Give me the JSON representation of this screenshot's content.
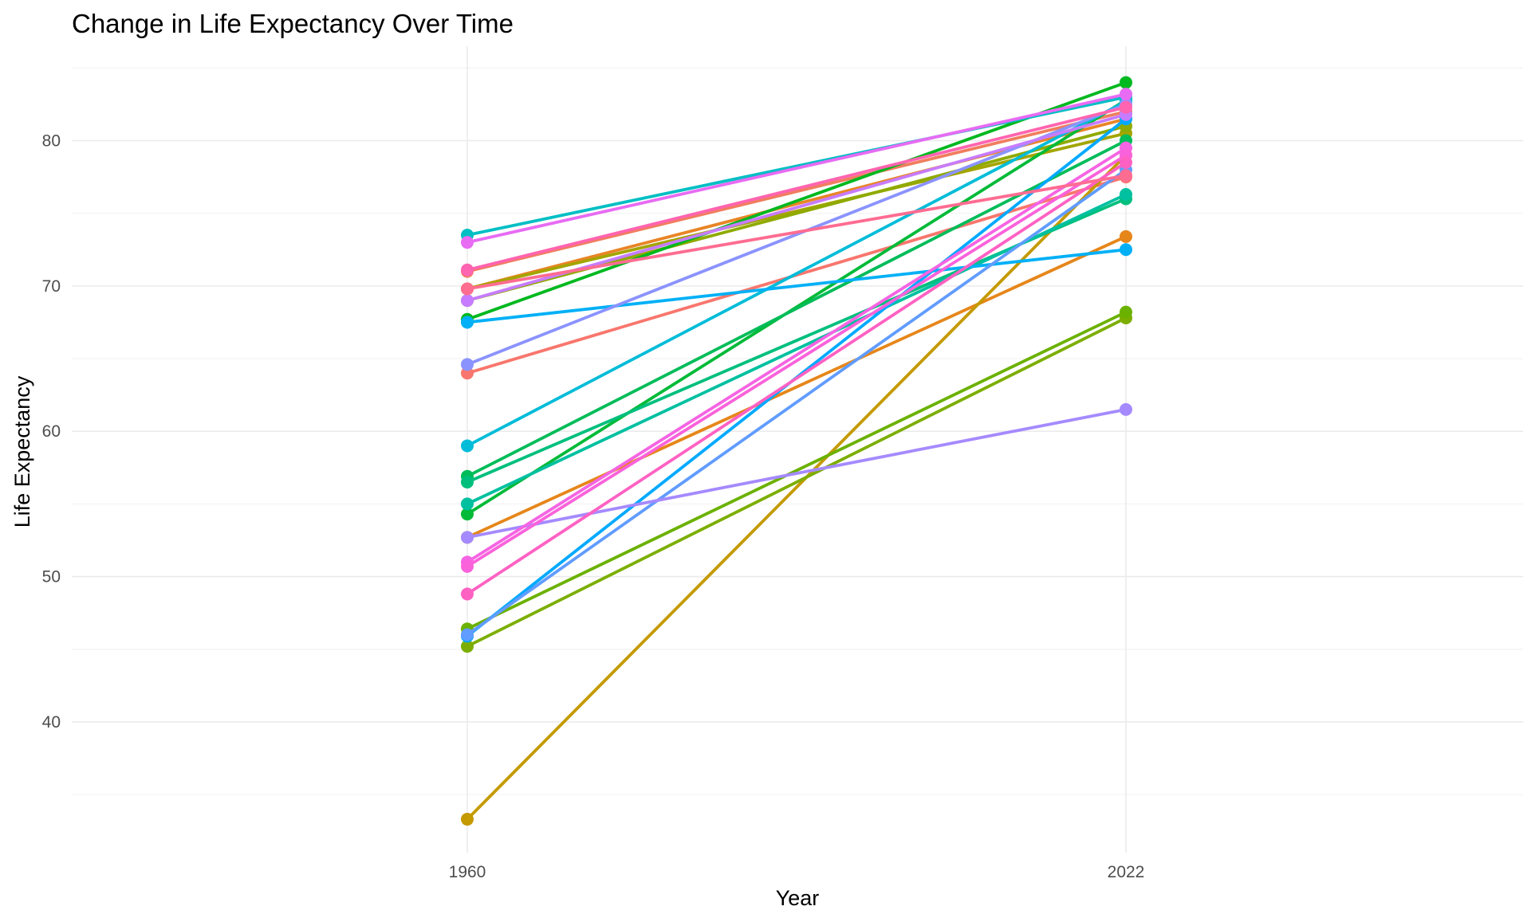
{
  "chart_data": {
    "type": "line",
    "title": "Change in Life Expectancy Over Time",
    "xlabel": "Year",
    "ylabel": "Life Expectancy",
    "x": [
      "1960",
      "2022"
    ],
    "ylim": [
      31,
      86.5
    ],
    "yticks": [
      40,
      50,
      60,
      70,
      80
    ],
    "grid": true,
    "legend": "none",
    "series": [
      {
        "color": "#F8766D",
        "values": [
          64.0,
          77.5
        ]
      },
      {
        "color": "#F07E5E",
        "values": [
          71.0,
          82.0
        ]
      },
      {
        "color": "#E88526",
        "values": [
          69.8,
          81.5
        ]
      },
      {
        "color": "#E6861A",
        "values": [
          52.7,
          73.4
        ]
      },
      {
        "color": "#C49A00",
        "values": [
          33.3,
          79.0
        ]
      },
      {
        "color": "#A3A500",
        "values": [
          69.8,
          80.5
        ]
      },
      {
        "color": "#8FAA00",
        "values": [
          69.0,
          81.0
        ]
      },
      {
        "color": "#7CAE00",
        "values": [
          45.2,
          67.8
        ]
      },
      {
        "color": "#6BB100",
        "values": [
          46.4,
          68.2
        ]
      },
      {
        "color": "#00B81F",
        "values": [
          67.7,
          84.0
        ]
      },
      {
        "color": "#00BA38",
        "values": [
          54.3,
          82.8
        ]
      },
      {
        "color": "#00BC59",
        "values": [
          56.9,
          80.0
        ]
      },
      {
        "color": "#00BF7D",
        "values": [
          56.5,
          76.0
        ]
      },
      {
        "color": "#00C0A0",
        "values": [
          55.0,
          76.3
        ]
      },
      {
        "color": "#00BFC4",
        "values": [
          73.5,
          83.0
        ]
      },
      {
        "color": "#00BCD8",
        "values": [
          59.0,
          82.7
        ]
      },
      {
        "color": "#00B0F6",
        "values": [
          67.5,
          72.5
        ]
      },
      {
        "color": "#00A9FF",
        "values": [
          45.9,
          81.5
        ]
      },
      {
        "color": "#619CFF",
        "values": [
          46.0,
          78.0
        ]
      },
      {
        "color": "#8B93FF",
        "values": [
          64.6,
          82.5
        ]
      },
      {
        "color": "#A58AFF",
        "values": [
          52.7,
          61.5
        ]
      },
      {
        "color": "#C77CFF",
        "values": [
          69.0,
          81.8
        ]
      },
      {
        "color": "#E76BF3",
        "values": [
          73.0,
          83.2
        ]
      },
      {
        "color": "#F564E3",
        "values": [
          51.0,
          79.5
        ]
      },
      {
        "color": "#FA62DB",
        "values": [
          50.7,
          79.0
        ]
      },
      {
        "color": "#FF61C3",
        "values": [
          48.8,
          78.5
        ]
      },
      {
        "color": "#FF64B0",
        "values": [
          71.1,
          82.3
        ]
      },
      {
        "color": "#FF6C91",
        "values": [
          69.8,
          77.6
        ]
      }
    ]
  }
}
